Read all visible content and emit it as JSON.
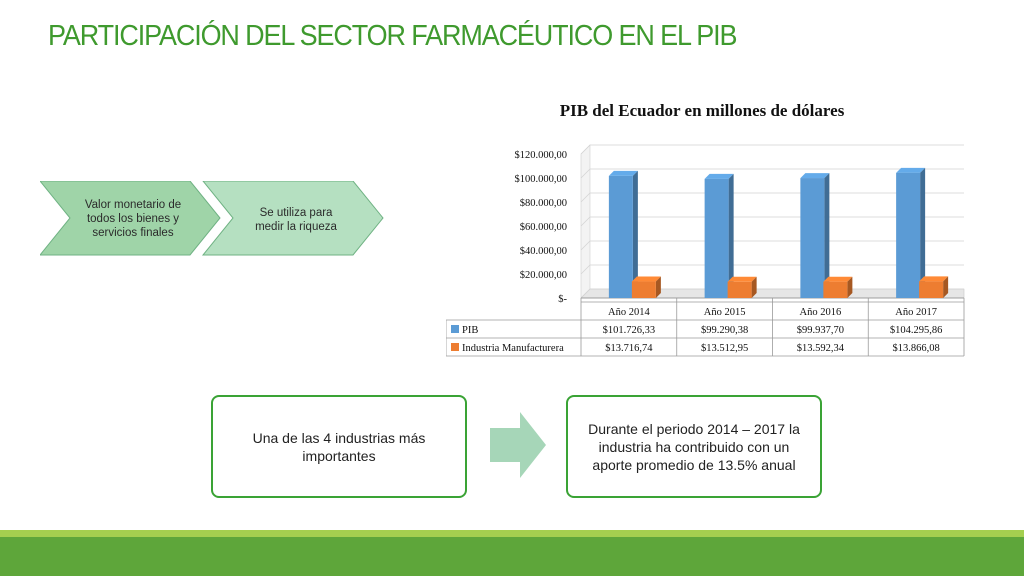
{
  "slide": {
    "title": "PARTICIPACIÓN DEL SECTOR FARMACÉUTICO EN EL PIB",
    "chevrons": [
      {
        "lines": [
          "Valor monetario de",
          "todos los bienes y",
          "servicios finales"
        ],
        "fill": "#9fd4a8"
      },
      {
        "lines": [
          "Se utiliza para",
          "medir la riqueza"
        ],
        "fill": "#b5e0c1"
      }
    ],
    "box1_text": "Una de las 4 industrias más importantes",
    "box2_text": "Durante el periodo 2014 – 2017 la industria ha contribuido con un aporte promedio de 13.5% anual",
    "colors": {
      "title": "#3f9a2e",
      "box_border": "#3aa335",
      "arrow": "#a6d6b8",
      "footer": "#5ea63a",
      "footer_top": "#a4cf4f"
    }
  },
  "chart_data": {
    "type": "bar",
    "title": "PIB del Ecuador  en millones de dólares",
    "categories": [
      "Año 2014",
      "Año 2015",
      "Año 2016",
      "Año 2017"
    ],
    "series": [
      {
        "name": "PIB",
        "values": [
          101726.33,
          99290.38,
          99937.7,
          104295.86
        ],
        "labels": [
          "$101.726,33",
          "$99.290,38",
          "$99.937,70",
          "$104.295,86"
        ],
        "color": "#5b9bd5"
      },
      {
        "name": "Industria Manufacturera",
        "values": [
          13716.74,
          13512.95,
          13592.34,
          13866.08
        ],
        "labels": [
          "$13.716,74",
          "$13.512,95",
          "$13.592,34",
          "$13.866,08"
        ],
        "color": "#ed7d31"
      }
    ],
    "yticks": [
      "$-",
      "$20.000,00",
      "$40.000,00",
      "$60.000,00",
      "$80.000,00",
      "$100.000,00",
      "$120.000,00"
    ],
    "ylim": [
      0,
      120000
    ],
    "grid": true,
    "legend": "data table below chart"
  }
}
